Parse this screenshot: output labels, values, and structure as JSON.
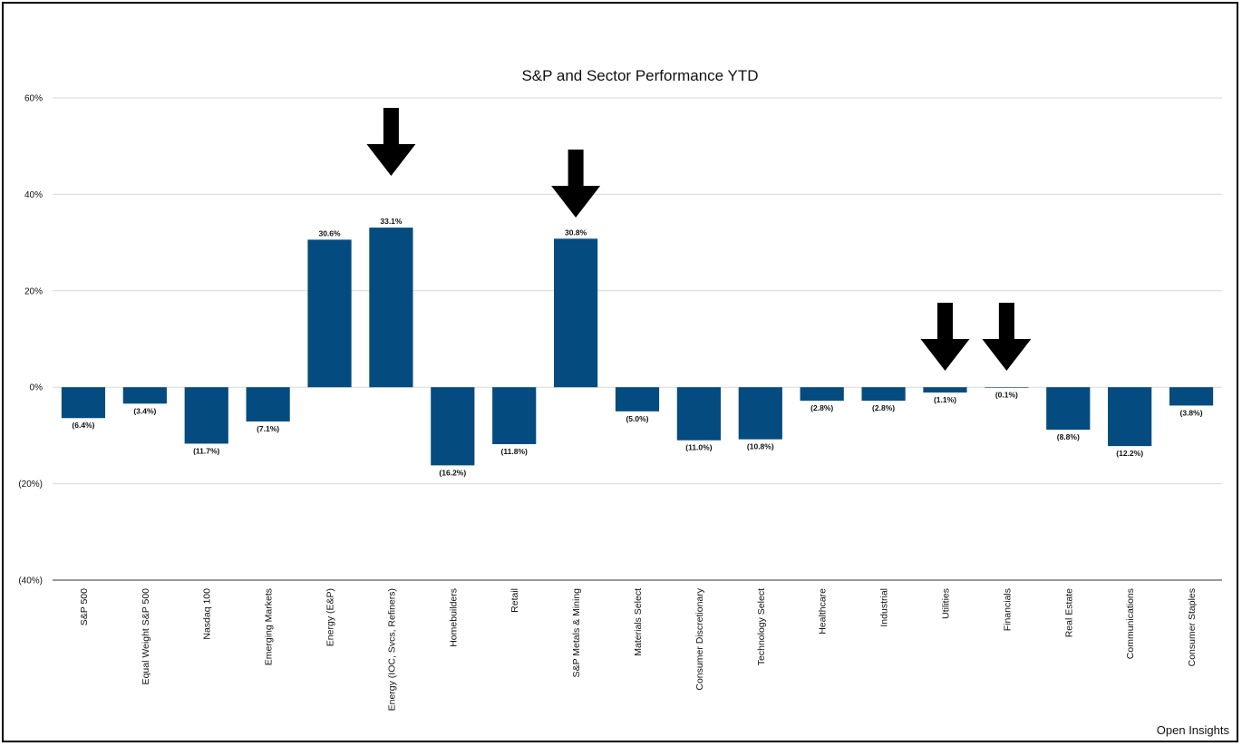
{
  "chart_data": {
    "type": "bar",
    "title": "S&P and Sector Performance YTD",
    "xlabel": "",
    "ylabel": "",
    "ylim": [
      -40,
      60
    ],
    "yticks": [
      60,
      40,
      20,
      0,
      -20,
      -40
    ],
    "ytick_labels": [
      "60%",
      "40%",
      "20%",
      "0%",
      "(20%)",
      "(40%)"
    ],
    "grid": true,
    "bar_color": "#044b7f",
    "categories": [
      "S&P 500",
      "Equal Weight S&P 500",
      "Nasdaq 100",
      "Emerging Markets",
      "Energy (E&P)",
      "Energy (IOC, Svcs, Refiners)",
      "Homebuilders",
      "Retail",
      "S&P Metals & Mining",
      "Materials Select",
      "Consumer Discretionary",
      "Technology Select",
      "Healthcare",
      "Industrial",
      "Utilities",
      "Financials",
      "Real Estate",
      "Communications",
      "Consumer Staples"
    ],
    "values": [
      -6.4,
      -3.4,
      -11.7,
      -7.1,
      30.6,
      33.1,
      -16.2,
      -11.8,
      30.8,
      -5.0,
      -11.0,
      -10.8,
      -2.8,
      -2.8,
      -1.1,
      -0.1,
      -8.8,
      -12.2,
      -3.8
    ],
    "data_labels": [
      "(6.4%)",
      "(3.4%)",
      "(11.7%)",
      "(7.1%)",
      "30.6%",
      "33.1%",
      "(16.2%)",
      "(11.8%)",
      "30.8%",
      "(5.0%)",
      "(11.0%)",
      "(10.8%)",
      "(2.8%)",
      "(2.8%)",
      "(1.1%)",
      "(0.1%)",
      "(8.8%)",
      "(12.2%)",
      "(3.8%)"
    ],
    "annotations": [
      {
        "type": "arrow-down",
        "category": "Energy (IOC, Svcs, Refiners)"
      },
      {
        "type": "arrow-down",
        "category": "S&P Metals & Mining"
      },
      {
        "type": "arrow-down",
        "category": "Utilities"
      },
      {
        "type": "arrow-down",
        "category": "Financials"
      }
    ]
  },
  "watermark": "Open Insights"
}
